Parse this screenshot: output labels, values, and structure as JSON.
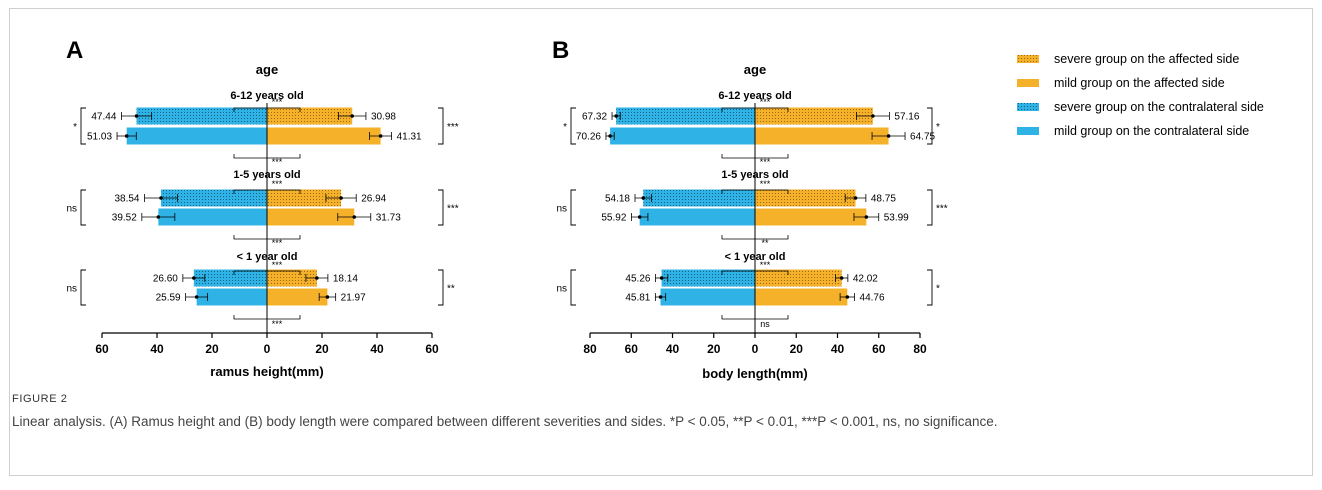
{
  "figure": {
    "label": "FIGURE 2",
    "caption": "Linear analysis. (A) Ramus height and (B) body length were compared between different severities and sides. *P < 0.05, **P < 0.01, ***P < 0.001, ns, no significance."
  },
  "legend": [
    {
      "label": "severe group on the affected side",
      "color": "#f6b12a",
      "pattern": "dotted"
    },
    {
      "label": "mild group on the affected side",
      "color": "#f6b12a",
      "pattern": "solid"
    },
    {
      "label": "severe group on the contralateral side",
      "color": "#2fb3e6",
      "pattern": "dotted"
    },
    {
      "label": "mild group on the contralateral side",
      "color": "#2fb3e6",
      "pattern": "solid"
    }
  ],
  "colors": {
    "affected": "#f6b12a",
    "contralateral": "#2fb3e6",
    "axis": "#000000"
  },
  "chart_data": [
    {
      "panel": "A",
      "type": "bar",
      "orientation": "horizontal-butterfly",
      "title": "age",
      "xlabel": "ramus height(mm)",
      "xlim": [
        -60,
        60
      ],
      "xticks": [
        -60,
        -40,
        -20,
        0,
        20,
        40,
        60
      ],
      "xtick_labels": [
        "60",
        "40",
        "20",
        "0",
        "20",
        "40",
        "60"
      ],
      "groups": [
        {
          "label": "6-12 years old",
          "severe_contralateral": 47.44,
          "mild_contralateral": 51.03,
          "severe_affected": 30.98,
          "mild_affected": 41.31,
          "err": {
            "severe_contralateral": 5.5,
            "mild_contralateral": 3.5,
            "severe_affected": 5.0,
            "mild_affected": 4.0
          },
          "sig_contralateral": "*",
          "sig_affected": "***",
          "sig_top": "***",
          "sig_bottom": "***"
        },
        {
          "label": "1-5 years old",
          "severe_contralateral": 38.54,
          "mild_contralateral": 39.52,
          "severe_affected": 26.94,
          "mild_affected": 31.73,
          "err": {
            "severe_contralateral": 6.0,
            "mild_contralateral": 6.0,
            "severe_affected": 5.5,
            "mild_affected": 6.0
          },
          "sig_contralateral": "ns",
          "sig_affected": "***",
          "sig_top": "***",
          "sig_bottom": "***"
        },
        {
          "label": "< 1 year old",
          "severe_contralateral": 26.6,
          "mild_contralateral": 25.59,
          "severe_affected": 18.14,
          "mild_affected": 21.97,
          "err": {
            "severe_contralateral": 4.0,
            "mild_contralateral": 4.0,
            "severe_affected": 4.0,
            "mild_affected": 3.0
          },
          "sig_contralateral": "ns",
          "sig_affected": "**",
          "sig_top": "***",
          "sig_bottom": "***"
        }
      ]
    },
    {
      "panel": "B",
      "type": "bar",
      "orientation": "horizontal-butterfly",
      "title": "age",
      "xlabel": "body length(mm)",
      "xlim": [
        -80,
        80
      ],
      "xticks": [
        -80,
        -60,
        -40,
        -20,
        0,
        20,
        40,
        60,
        80
      ],
      "xtick_labels": [
        "80",
        "60",
        "40",
        "20",
        "0",
        "20",
        "40",
        "60",
        "80"
      ],
      "groups": [
        {
          "label": "6-12 years old",
          "severe_contralateral": 67.32,
          "mild_contralateral": 70.26,
          "severe_affected": 57.16,
          "mild_affected": 64.75,
          "err": {
            "severe_contralateral": 2.0,
            "mild_contralateral": 2.0,
            "severe_affected": 8.0,
            "mild_affected": 8.0
          },
          "sig_contralateral": "*",
          "sig_affected": "*",
          "sig_top": "***",
          "sig_bottom": "***"
        },
        {
          "label": "1-5 years old",
          "severe_contralateral": 54.18,
          "mild_contralateral": 55.92,
          "severe_affected": 48.75,
          "mild_affected": 53.99,
          "err": {
            "severe_contralateral": 4.0,
            "mild_contralateral": 4.0,
            "severe_affected": 5.0,
            "mild_affected": 6.0
          },
          "sig_contralateral": "ns",
          "sig_affected": "***",
          "sig_top": "***",
          "sig_bottom": "**"
        },
        {
          "label": "< 1 year old",
          "severe_contralateral": 45.26,
          "mild_contralateral": 45.81,
          "severe_affected": 42.02,
          "mild_affected": 44.76,
          "err": {
            "severe_contralateral": 3.0,
            "mild_contralateral": 2.5,
            "severe_affected": 3.0,
            "mild_affected": 3.5
          },
          "sig_contralateral": "ns",
          "sig_affected": "*",
          "sig_top": "***",
          "sig_bottom": "ns"
        }
      ]
    }
  ]
}
